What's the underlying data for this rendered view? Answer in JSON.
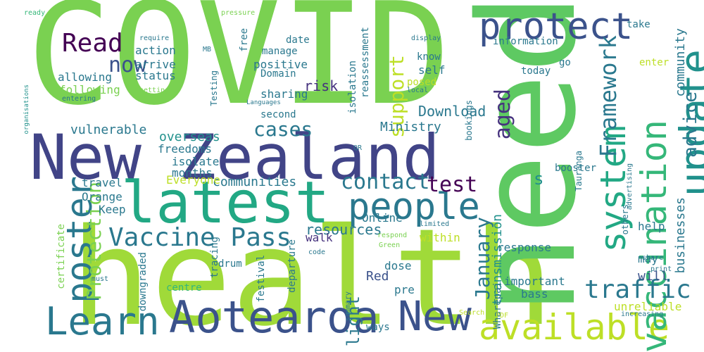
{
  "cloud": {
    "words": [
      {
        "text": "COVID",
        "color": "#7ad151"
      },
      {
        "text": "health",
        "color": "#a0da39"
      },
      {
        "text": "need",
        "color": "#5ec962"
      },
      {
        "text": "New Zealand",
        "color": "#414487"
      },
      {
        "text": "latest",
        "color": "#22a884"
      },
      {
        "text": "Aotearoa",
        "color": "#3b528b"
      },
      {
        "text": "New",
        "color": "#3b528b"
      },
      {
        "text": "Learn",
        "color": "#2a788e"
      },
      {
        "text": "available",
        "color": "#bddf26"
      },
      {
        "text": "protect",
        "color": "#3b528b"
      },
      {
        "text": "update",
        "color": "#21918c"
      },
      {
        "text": "people",
        "color": "#2a788e"
      },
      {
        "text": "poster",
        "color": "#2a788e"
      },
      {
        "text": "Vaccine Pass",
        "color": "#2a788e"
      },
      {
        "text": "system",
        "color": "#22a884"
      },
      {
        "text": "vaccination",
        "color": "#35b779"
      },
      {
        "text": "traffic",
        "color": "#2a788e"
      },
      {
        "text": "Read",
        "color": "#440154"
      },
      {
        "text": "now",
        "color": "#3b528b"
      },
      {
        "text": "Framework",
        "color": "#2a788e"
      },
      {
        "text": "advice",
        "color": "#2a788e"
      },
      {
        "text": "contact",
        "color": "#2a788e"
      },
      {
        "text": "test",
        "color": "#440154"
      },
      {
        "text": "cases",
        "color": "#2a788e"
      },
      {
        "text": "support",
        "color": "#bddf26"
      },
      {
        "text": "aged",
        "color": "#46327e"
      },
      {
        "text": "Protection",
        "color": "#7ad151"
      },
      {
        "text": "January",
        "color": "#2a788e"
      },
      {
        "text": "light",
        "color": "#2a788e"
      },
      {
        "text": "community",
        "color": "#2a788e"
      },
      {
        "text": "businesses",
        "color": "#2a788e"
      },
      {
        "text": "transmission",
        "color": "#21918c"
      },
      {
        "text": "Download",
        "color": "#2a788e"
      },
      {
        "text": "Ministry",
        "color": "#2a788e"
      },
      {
        "text": "communities",
        "color": "#2a788e"
      },
      {
        "text": "resources",
        "color": "#2a788e"
      },
      {
        "text": "vulnerable",
        "color": "#2a788e"
      },
      {
        "text": "risk",
        "color": "#46327e"
      },
      {
        "text": "s",
        "color": "#21918c"
      },
      {
        "text": "overseas",
        "color": "#21918c"
      },
      {
        "text": "freedoms",
        "color": "#2a788e"
      },
      {
        "text": "isolate",
        "color": "#2a788e"
      },
      {
        "text": "months",
        "color": "#2a788e"
      },
      {
        "text": "Everyone",
        "color": "#bddf26"
      },
      {
        "text": "travel",
        "color": "#2a788e"
      },
      {
        "text": "Orange",
        "color": "#2a788e"
      },
      {
        "text": "Keep",
        "color": "#2a788e"
      },
      {
        "text": "walk",
        "color": "#46327e"
      },
      {
        "text": "Online",
        "color": "#2a788e"
      },
      {
        "text": "within",
        "color": "#bddf26"
      },
      {
        "text": "Red",
        "color": "#3b528b"
      },
      {
        "text": "dose",
        "color": "#2a788e"
      },
      {
        "text": "pre",
        "color": "#2a788e"
      },
      {
        "text": "response",
        "color": "#2a788e"
      },
      {
        "text": "will",
        "color": "#3b528b"
      },
      {
        "text": "may",
        "color": "#2a788e"
      },
      {
        "text": "help",
        "color": "#2a788e"
      },
      {
        "text": "important",
        "color": "#2a788e"
      },
      {
        "text": "bass",
        "color": "#2a788e"
      },
      {
        "text": "unreliable",
        "color": "#bddf26"
      },
      {
        "text": "booster",
        "color": "#2a788e"
      },
      {
        "text": "action",
        "color": "#2a788e"
      },
      {
        "text": "arrive",
        "color": "#2a788e"
      },
      {
        "text": "status",
        "color": "#2a788e"
      },
      {
        "text": "allowing",
        "color": "#2a788e"
      },
      {
        "text": "following",
        "color": "#7ad151"
      },
      {
        "text": "positive",
        "color": "#2a788e"
      },
      {
        "text": "Domain",
        "color": "#2a788e"
      },
      {
        "text": "sharing",
        "color": "#2a788e"
      },
      {
        "text": "second",
        "color": "#2a788e"
      },
      {
        "text": "date",
        "color": "#2a788e"
      },
      {
        "text": "manage",
        "color": "#2a788e"
      },
      {
        "text": "self",
        "color": "#2a788e"
      },
      {
        "text": "know",
        "color": "#2a788e"
      },
      {
        "text": "posed",
        "color": "#bddf26"
      },
      {
        "text": "today",
        "color": "#2a788e"
      },
      {
        "text": "go",
        "color": "#2a788e"
      },
      {
        "text": "enter",
        "color": "#bddf26"
      },
      {
        "text": "take",
        "color": "#2a788e"
      },
      {
        "text": "information",
        "color": "#2a788e"
      },
      {
        "text": "free",
        "color": "#2a788e"
      },
      {
        "text": "reassessment",
        "color": "#2a788e"
      },
      {
        "text": "isolation",
        "color": "#2a788e"
      },
      {
        "text": "bookings",
        "color": "#2a788e"
      },
      {
        "text": "Tauranga",
        "color": "#2a788e"
      },
      {
        "text": "Testing",
        "color": "#2a788e"
      },
      {
        "text": "certificate",
        "color": "#7ad151"
      },
      {
        "text": "tracing",
        "color": "#2a788e"
      },
      {
        "text": "downgraded",
        "color": "#2a788e"
      },
      {
        "text": "drum",
        "color": "#2a788e"
      },
      {
        "text": "centre",
        "color": "#35b779"
      },
      {
        "text": "festival",
        "color": "#2a788e"
      },
      {
        "text": "departure",
        "color": "#2a788e"
      },
      {
        "text": "Wharepai",
        "color": "#2a788e"
      },
      {
        "text": "ways",
        "color": "#2a788e"
      },
      {
        "text": "others",
        "color": "#2a788e"
      },
      {
        "text": "display",
        "color": "#2a788e"
      },
      {
        "text": "local",
        "color": "#2a788e"
      },
      {
        "text": "pressure",
        "color": "#7ad151"
      },
      {
        "text": "ready",
        "color": "#35b779"
      },
      {
        "text": "require",
        "color": "#2a788e"
      },
      {
        "text": "setting",
        "color": "#7ad151"
      },
      {
        "text": "entering",
        "color": "#2a788e"
      },
      {
        "text": "organisations",
        "color": "#21918c"
      },
      {
        "text": "Languages",
        "color": "#2a788e"
      },
      {
        "text": "MB",
        "color": "#2a788e"
      },
      {
        "text": "QR",
        "color": "#2a788e"
      },
      {
        "text": "limited",
        "color": "#2a788e"
      },
      {
        "text": "respond",
        "color": "#7ad151"
      },
      {
        "text": "Green",
        "color": "#7ad151"
      },
      {
        "text": "code",
        "color": "#2a788e"
      },
      {
        "text": "must",
        "color": "#2a788e"
      },
      {
        "text": "summary",
        "color": "#2a788e"
      },
      {
        "text": "Search",
        "color": "#bddf26"
      },
      {
        "text": "PDF",
        "color": "#bddf26"
      },
      {
        "text": "share",
        "color": "#2a788e"
      },
      {
        "text": "print",
        "color": "#2a788e"
      },
      {
        "text": "advertising",
        "color": "#2a788e"
      },
      {
        "text": "increasing",
        "color": "#2a788e"
      }
    ]
  }
}
